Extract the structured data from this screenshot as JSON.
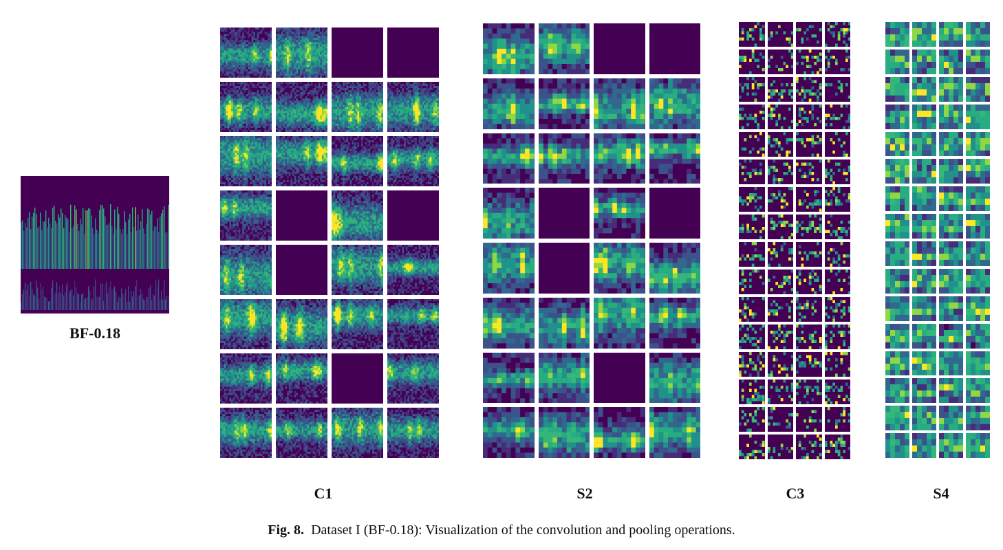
{
  "input": {
    "label": "BF-0.18"
  },
  "layers": [
    {
      "id": "c1",
      "label": "C1",
      "rows": 8,
      "cols": 4,
      "kind": "fine",
      "blank": [
        2,
        3,
        13,
        15,
        17,
        26
      ]
    },
    {
      "id": "s2",
      "label": "S2",
      "rows": 8,
      "cols": 4,
      "kind": "coarse",
      "blank": [
        2,
        3,
        13,
        15,
        17,
        26
      ]
    },
    {
      "id": "c3",
      "label": "C3",
      "rows": 16,
      "cols": 4,
      "kind": "sparse",
      "blank": []
    },
    {
      "id": "s4",
      "label": "S4",
      "rows": 16,
      "cols": 4,
      "kind": "block",
      "blank": []
    }
  ],
  "caption": {
    "prefix": "Fig. 8.",
    "text": "Dataset I (BF-0.18): Visualization of the convolution and pooling operations."
  },
  "colors": {
    "viridis_dark": "#440154",
    "viridis_blue": "#31688e",
    "viridis_teal": "#21918c",
    "viridis_green": "#35b779",
    "viridis_yellow": "#fde725"
  }
}
